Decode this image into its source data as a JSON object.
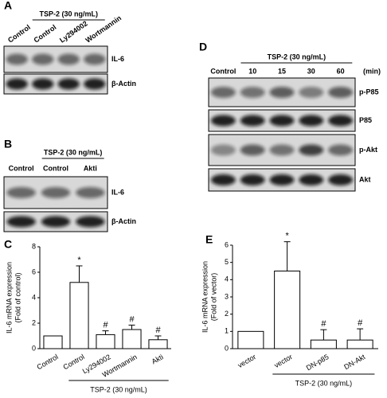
{
  "blots": [
    {
      "label": "A",
      "header": "TSP-2 (30 ng/mL)",
      "lanes": [
        "Control",
        "Control",
        "Ly294002",
        "Wortmannin"
      ],
      "rows": [
        "IL-6",
        "β-Actin"
      ]
    },
    {
      "label": "B",
      "header": "TSP-2 (30 ng/mL)",
      "lanes": [
        "Control",
        "Control",
        "Akti"
      ],
      "rows": [
        "IL-6",
        "β-Actin"
      ]
    },
    {
      "label": "D",
      "header": "TSP-2 (30 ng/mL)",
      "lanes": [
        "Control",
        "10",
        "15",
        "30",
        "60"
      ],
      "unit": "(min)",
      "rows": [
        "p-P85",
        "P85",
        "p-Akt",
        "Akt"
      ]
    }
  ],
  "chart_data": [
    {
      "type": "bar",
      "label": "C",
      "ylabel": [
        "IL-6 mRNA expression",
        "(Fold of control)"
      ],
      "categories": [
        "Control",
        "Control",
        "Ly294002",
        "Wortmannin",
        "Akti"
      ],
      "values": [
        1,
        5.2,
        1.1,
        1.5,
        0.7
      ],
      "errors": [
        null,
        1.3,
        0.3,
        0.35,
        0.3
      ],
      "annotations": [
        null,
        "*",
        "#",
        "#",
        "#"
      ],
      "group_label": "TSP-2 (30 ng/mL)",
      "ylim": [
        0,
        8
      ],
      "yticks": [
        0,
        2,
        4,
        6,
        8
      ],
      "color": "#ffffff"
    },
    {
      "type": "bar",
      "label": "E",
      "ylabel": [
        "IL-6 mRNA expression",
        "(Fold of vector)"
      ],
      "categories": [
        "vector",
        "vector",
        "DN-p85",
        "DN-Akt"
      ],
      "values": [
        1,
        4.5,
        0.5,
        0.5
      ],
      "errors": [
        null,
        1.7,
        0.6,
        0.65
      ],
      "annotations": [
        null,
        "*",
        "#",
        "#"
      ],
      "group_label": "TSP-2 (30 ng/mL)",
      "ylim": [
        0,
        6
      ],
      "yticks": [
        0,
        1,
        2,
        3,
        4,
        5,
        6
      ],
      "color": "#ffffff"
    }
  ]
}
